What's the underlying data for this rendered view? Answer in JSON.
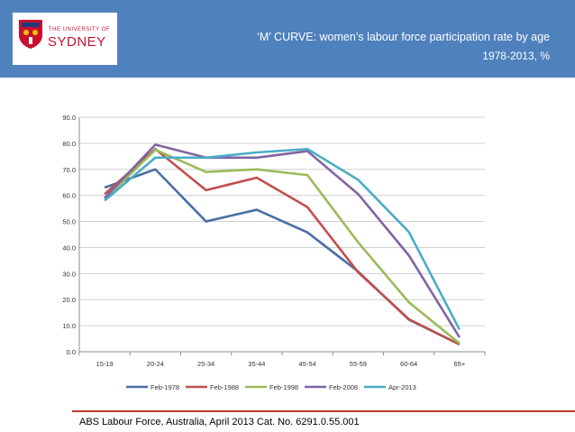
{
  "header": {
    "logo": {
      "line1": "THE UNIVERSITY OF",
      "line2": "SYDNEY"
    },
    "title_line1": "‘M’ CURVE: women’s labour force participation rate by age",
    "title_line2": "1978-2013, %"
  },
  "chart_data": {
    "type": "line",
    "categories": [
      "15-19",
      "20-24",
      "25-34",
      "35-44",
      "45-54",
      "55-59",
      "60-64",
      "65+"
    ],
    "series": [
      {
        "name": "Feb-1978",
        "color": "#4a6fa5",
        "values": [
          63.0,
          70.0,
          50.0,
          54.5,
          45.8,
          30.8,
          12.3,
          2.8
        ]
      },
      {
        "name": "Feb-1988",
        "color": "#c0504d",
        "values": [
          60.5,
          77.8,
          62.0,
          66.8,
          55.5,
          30.5,
          12.5,
          2.8
        ]
      },
      {
        "name": "Feb-1998",
        "color": "#9bbb59",
        "values": [
          58.5,
          77.5,
          69.0,
          70.0,
          67.8,
          42.0,
          19.0,
          3.2
        ]
      },
      {
        "name": "Feb-2008",
        "color": "#8064a2",
        "values": [
          59.0,
          79.5,
          74.5,
          74.5,
          77.0,
          60.5,
          37.0,
          5.5
        ]
      },
      {
        "name": "Apr-2013",
        "color": "#4bacc6",
        "values": [
          58.0,
          74.5,
          74.5,
          76.5,
          77.8,
          66.0,
          46.0,
          8.5
        ]
      }
    ],
    "y_ticks": [
      "0.0",
      "10.0",
      "20.0",
      "30.0",
      "40.0",
      "50.0",
      "60.0",
      "70.0",
      "80.0",
      "90.0"
    ],
    "ylim": [
      0,
      90
    ],
    "grid": true,
    "legend": "bottom"
  },
  "footer": {
    "source": "ABS Labour Force, Australia, April 2013 Cat. No. 6291.0.55.001"
  }
}
